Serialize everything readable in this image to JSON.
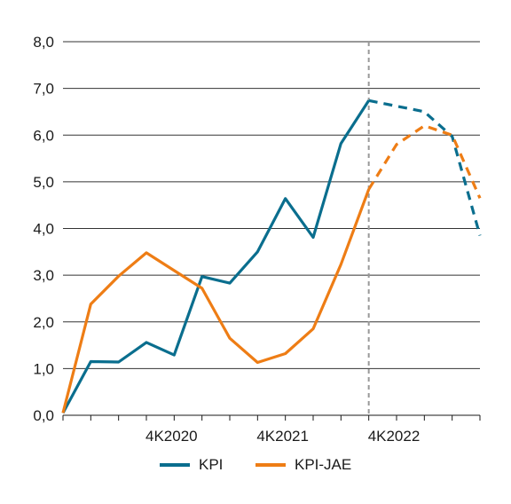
{
  "chart_data": {
    "type": "line",
    "ylim": [
      0,
      8
    ],
    "yticks": [
      "0,0",
      "1,0",
      "2,0",
      "3,0",
      "4,0",
      "5,0",
      "6,0",
      "7,0",
      "8,0"
    ],
    "x_tick_labels": [
      "4K2020",
      "4K2021",
      "4K2022"
    ],
    "grid": true,
    "legend_position": "bottom",
    "forecast_from_index": 11,
    "series": [
      {
        "name": "KPI",
        "color": "#0a6e8e",
        "values": [
          0.05,
          1.15,
          1.14,
          1.56,
          1.29,
          2.97,
          2.83,
          3.5,
          4.64,
          3.81,
          5.82,
          6.74,
          6.62,
          6.5,
          5.97,
          3.85
        ]
      },
      {
        "name": "KPI-JAE",
        "color": "#ee7d15",
        "values": [
          0.05,
          2.38,
          2.98,
          3.48,
          3.1,
          2.72,
          1.65,
          1.13,
          1.32,
          1.85,
          3.23,
          4.84,
          5.8,
          6.2,
          6.0,
          4.65
        ]
      }
    ]
  }
}
